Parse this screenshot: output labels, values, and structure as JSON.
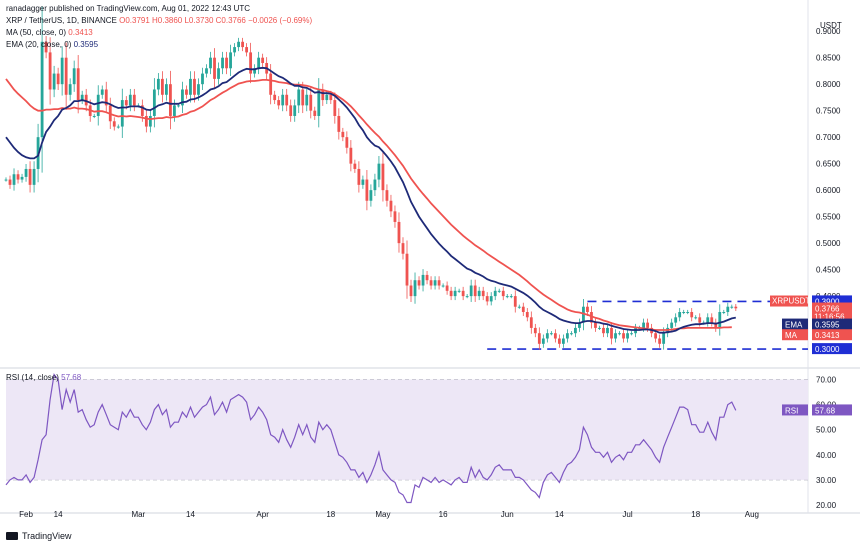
{
  "header": {
    "publisher": "ranadagger published on TradingView.com, Aug 01, 2022 12:43 UTC",
    "symbol": "XRP / TetherUS, 1D, BINANCE",
    "ohlc": "O0.3791 H0.3860 L0.3730 C0.3766 −0.0026 (−0.69%)",
    "ma_label": "MA (50, close, 0)",
    "ma_value": "0.3413",
    "ema_label": "EMA (20, close, 0)",
    "ema_value": "0.3595",
    "rsi_label": "RSI (14, close)",
    "rsi_value": "57.68"
  },
  "footer": {
    "brand": "TradingView"
  },
  "colors": {
    "up": "#26a69a",
    "down": "#ef5350",
    "ma": "#ef5350",
    "ema": "#1e2a78",
    "rsi": "#7e57c2",
    "rsi_band": "#ede7f6",
    "level": "#1f2ed4"
  },
  "chart_data": [
    {
      "type": "candlestick",
      "title": "XRP / TetherUS, 1D, BINANCE",
      "y_axis_title": "USDT",
      "ylim": [
        0.27,
        0.94
      ],
      "y_ticks": [
        0.3,
        0.35,
        0.4,
        0.45,
        0.5,
        0.55,
        0.6,
        0.65,
        0.7,
        0.75,
        0.8,
        0.85,
        0.9
      ],
      "y_tick_labels": [
        "0.3000",
        "0.3500",
        "0.4000",
        "0.4500",
        "0.5000",
        "0.5500",
        "0.6000",
        "0.6500",
        "0.7000",
        "0.7500",
        "0.8000",
        "0.8500",
        "0.9000"
      ],
      "x_ticks": [
        {
          "day": 5,
          "label": "Feb"
        },
        {
          "day": 13,
          "label": "14"
        },
        {
          "day": 33,
          "label": "Mar"
        },
        {
          "day": 46,
          "label": "14"
        },
        {
          "day": 64,
          "label": "Apr"
        },
        {
          "day": 81,
          "label": "18"
        },
        {
          "day": 94,
          "label": "May"
        },
        {
          "day": 109,
          "label": "16"
        },
        {
          "day": 125,
          "label": "Jun"
        },
        {
          "day": 138,
          "label": "14"
        },
        {
          "day": 155,
          "label": "Jul"
        },
        {
          "day": 172,
          "label": "18"
        },
        {
          "day": 186,
          "label": "Aug"
        }
      ],
      "x_domain": [
        0,
        200
      ],
      "close_prices": [
        0.62,
        0.61,
        0.63,
        0.62,
        0.625,
        0.64,
        0.61,
        0.64,
        0.7,
        0.88,
        0.86,
        0.79,
        0.82,
        0.8,
        0.85,
        0.78,
        0.8,
        0.83,
        0.77,
        0.78,
        0.76,
        0.74,
        0.74,
        0.78,
        0.79,
        0.76,
        0.73,
        0.72,
        0.72,
        0.77,
        0.76,
        0.78,
        0.76,
        0.76,
        0.74,
        0.72,
        0.74,
        0.79,
        0.81,
        0.78,
        0.8,
        0.74,
        0.76,
        0.76,
        0.79,
        0.78,
        0.81,
        0.78,
        0.8,
        0.82,
        0.83,
        0.85,
        0.81,
        0.83,
        0.85,
        0.83,
        0.86,
        0.87,
        0.88,
        0.87,
        0.86,
        0.82,
        0.83,
        0.85,
        0.84,
        0.82,
        0.78,
        0.77,
        0.76,
        0.78,
        0.76,
        0.74,
        0.76,
        0.79,
        0.76,
        0.78,
        0.75,
        0.74,
        0.79,
        0.77,
        0.78,
        0.77,
        0.74,
        0.71,
        0.7,
        0.68,
        0.65,
        0.64,
        0.61,
        0.62,
        0.58,
        0.6,
        0.62,
        0.65,
        0.6,
        0.58,
        0.56,
        0.54,
        0.5,
        0.48,
        0.42,
        0.4,
        0.43,
        0.42,
        0.44,
        0.43,
        0.42,
        0.43,
        0.42,
        0.42,
        0.41,
        0.4,
        0.41,
        0.41,
        0.4,
        0.4,
        0.42,
        0.4,
        0.41,
        0.4,
        0.39,
        0.4,
        0.41,
        0.41,
        0.4,
        0.4,
        0.4,
        0.38,
        0.38,
        0.37,
        0.36,
        0.34,
        0.33,
        0.31,
        0.32,
        0.33,
        0.33,
        0.32,
        0.31,
        0.32,
        0.33,
        0.33,
        0.34,
        0.35,
        0.38,
        0.37,
        0.35,
        0.34,
        0.34,
        0.33,
        0.34,
        0.32,
        0.33,
        0.33,
        0.32,
        0.33,
        0.33,
        0.34,
        0.34,
        0.35,
        0.34,
        0.33,
        0.32,
        0.31,
        0.33,
        0.34,
        0.35,
        0.36,
        0.37,
        0.37,
        0.37,
        0.36,
        0.36,
        0.35,
        0.35,
        0.36,
        0.35,
        0.34,
        0.37,
        0.37,
        0.38,
        0.38,
        0.377
      ],
      "levels": [
        {
          "value": 0.39,
          "label": "0.3900"
        },
        {
          "value": 0.3,
          "label": "0.3000"
        }
      ],
      "price_tags": [
        {
          "name": "XRPUSDT",
          "value": 0.3766,
          "label": "0.3766",
          "sub": "11:16:56"
        },
        {
          "name": "EMA",
          "value": 0.3595,
          "label": "0.3595"
        },
        {
          "name": "MA",
          "value": 0.3413,
          "label": "0.3413"
        }
      ],
      "ema20_approx": [
        0.7,
        0.69,
        0.68,
        0.672,
        0.666,
        0.662,
        0.66,
        0.66,
        0.665,
        0.69,
        0.71,
        0.72,
        0.732,
        0.74,
        0.752,
        0.755,
        0.76,
        0.768,
        0.768,
        0.77,
        0.768,
        0.765,
        0.762,
        0.764,
        0.766,
        0.765,
        0.762,
        0.758,
        0.755,
        0.756,
        0.756,
        0.758,
        0.758,
        0.758,
        0.756,
        0.752,
        0.751,
        0.755,
        0.76,
        0.762,
        0.765,
        0.763,
        0.763,
        0.763,
        0.766,
        0.767,
        0.771,
        0.772,
        0.775,
        0.779,
        0.784,
        0.79,
        0.792,
        0.796,
        0.802,
        0.804,
        0.81,
        0.816,
        0.822,
        0.826,
        0.829,
        0.828,
        0.828,
        0.83,
        0.831,
        0.83,
        0.825,
        0.82,
        0.815,
        0.812,
        0.807,
        0.801,
        0.797,
        0.797,
        0.794,
        0.793,
        0.789,
        0.784,
        0.785,
        0.783,
        0.783,
        0.782,
        0.778,
        0.771,
        0.764,
        0.756,
        0.746,
        0.736,
        0.723,
        0.713,
        0.7,
        0.691,
        0.684,
        0.681,
        0.673,
        0.664,
        0.654,
        0.643,
        0.629,
        0.615,
        0.597,
        0.578,
        0.564,
        0.55,
        0.539,
        0.528,
        0.517,
        0.508,
        0.499,
        0.491,
        0.484,
        0.476,
        0.47,
        0.464,
        0.458,
        0.452,
        0.449,
        0.444,
        0.441,
        0.437,
        0.432,
        0.429,
        0.427,
        0.424,
        0.422,
        0.42,
        0.418,
        0.414,
        0.41,
        0.406,
        0.401,
        0.395,
        0.388,
        0.38,
        0.374,
        0.37,
        0.366,
        0.362,
        0.357,
        0.354,
        0.352,
        0.35,
        0.349,
        0.349,
        0.352,
        0.353,
        0.353,
        0.351,
        0.35,
        0.348,
        0.347,
        0.344,
        0.342,
        0.34,
        0.338,
        0.337,
        0.336,
        0.336,
        0.336,
        0.337,
        0.337,
        0.336,
        0.334,
        0.331,
        0.331,
        0.332,
        0.333,
        0.335,
        0.339,
        0.342,
        0.344,
        0.346,
        0.347,
        0.347,
        0.348,
        0.349,
        0.349,
        0.348,
        0.35,
        0.352,
        0.355,
        0.358,
        0.3595
      ],
      "ma50_approx": [
        0.81,
        0.8,
        0.79,
        0.782,
        0.775,
        0.768,
        0.76,
        0.754,
        0.75,
        0.75,
        0.752,
        0.752,
        0.753,
        0.753,
        0.755,
        0.754,
        0.754,
        0.756,
        0.754,
        0.754,
        0.753,
        0.751,
        0.748,
        0.749,
        0.749,
        0.747,
        0.744,
        0.741,
        0.739,
        0.74,
        0.739,
        0.74,
        0.739,
        0.738,
        0.737,
        0.735,
        0.734,
        0.735,
        0.736,
        0.736,
        0.738,
        0.737,
        0.738,
        0.739,
        0.742,
        0.744,
        0.748,
        0.75,
        0.754,
        0.758,
        0.764,
        0.77,
        0.774,
        0.779,
        0.784,
        0.788,
        0.793,
        0.797,
        0.801,
        0.803,
        0.805,
        0.806,
        0.806,
        0.807,
        0.808,
        0.808,
        0.807,
        0.806,
        0.804,
        0.803,
        0.802,
        0.8,
        0.799,
        0.799,
        0.798,
        0.797,
        0.795,
        0.792,
        0.79,
        0.789,
        0.787,
        0.785,
        0.781,
        0.776,
        0.771,
        0.765,
        0.758,
        0.75,
        0.741,
        0.733,
        0.724,
        0.716,
        0.708,
        0.701,
        0.692,
        0.684,
        0.675,
        0.666,
        0.656,
        0.646,
        0.634,
        0.622,
        0.612,
        0.602,
        0.593,
        0.584,
        0.575,
        0.567,
        0.559,
        0.551,
        0.543,
        0.535,
        0.528,
        0.521,
        0.514,
        0.508,
        0.502,
        0.496,
        0.491,
        0.486,
        0.48,
        0.475,
        0.47,
        0.465,
        0.46,
        0.455,
        0.45,
        0.445,
        0.44,
        0.434,
        0.428,
        0.421,
        0.415,
        0.409,
        0.403,
        0.398,
        0.393,
        0.388,
        0.383,
        0.379,
        0.375,
        0.372,
        0.37,
        0.369,
        0.367,
        0.365,
        0.362,
        0.359,
        0.357,
        0.354,
        0.352,
        0.349,
        0.347,
        0.345,
        0.344,
        0.343,
        0.342,
        0.341,
        0.34,
        0.339,
        0.338,
        0.337,
        0.336,
        0.336,
        0.336,
        0.336,
        0.337,
        0.338,
        0.339,
        0.339,
        0.34,
        0.34,
        0.34,
        0.34,
        0.34,
        0.34,
        0.34,
        0.34,
        0.34,
        0.341,
        0.341,
        0.3413
      ]
    },
    {
      "type": "line",
      "title": "RSI (14, close)",
      "ylim": [
        18,
        73
      ],
      "y_ticks": [
        20,
        30,
        40,
        50,
        60,
        70
      ],
      "y_tick_labels": [
        "20.00",
        "30.00",
        "40.00",
        "50.00",
        "60.00",
        "70.00"
      ],
      "band": [
        30,
        70
      ],
      "current": {
        "value": 57.68,
        "label": "57.68",
        "name": "RSI"
      },
      "values": [
        28,
        30,
        31,
        30,
        30,
        32,
        29,
        31,
        38,
        46,
        48,
        62,
        72,
        70,
        58,
        66,
        61,
        66,
        57,
        58,
        54,
        51,
        52,
        57,
        60,
        56,
        52,
        51,
        50,
        57,
        55,
        58,
        55,
        55,
        52,
        50,
        53,
        58,
        60,
        56,
        58,
        51,
        53,
        53,
        57,
        55,
        59,
        55,
        57,
        59,
        60,
        63,
        56,
        58,
        61,
        57,
        62,
        63,
        64,
        63,
        61,
        54,
        56,
        59,
        57,
        54,
        48,
        47,
        45,
        50,
        46,
        43,
        47,
        52,
        48,
        52,
        47,
        45,
        53,
        50,
        52,
        50,
        45,
        40,
        39,
        37,
        34,
        34,
        31,
        33,
        29,
        32,
        36,
        41,
        34,
        32,
        30,
        29,
        25,
        24,
        21,
        21,
        28,
        27,
        31,
        30,
        29,
        31,
        29,
        30,
        29,
        28,
        30,
        31,
        29,
        29,
        35,
        31,
        34,
        31,
        30,
        32,
        35,
        36,
        34,
        34,
        34,
        31,
        31,
        30,
        28,
        26,
        25,
        23,
        29,
        32,
        33,
        31,
        29,
        33,
        36,
        37,
        39,
        42,
        51,
        48,
        43,
        41,
        41,
        39,
        41,
        37,
        39,
        40,
        38,
        41,
        41,
        44,
        44,
        46,
        44,
        42,
        39,
        37,
        43,
        47,
        51,
        55,
        59,
        59,
        58,
        52,
        52,
        49,
        49,
        53,
        49,
        46,
        55,
        55,
        60,
        61,
        57.7
      ]
    }
  ]
}
